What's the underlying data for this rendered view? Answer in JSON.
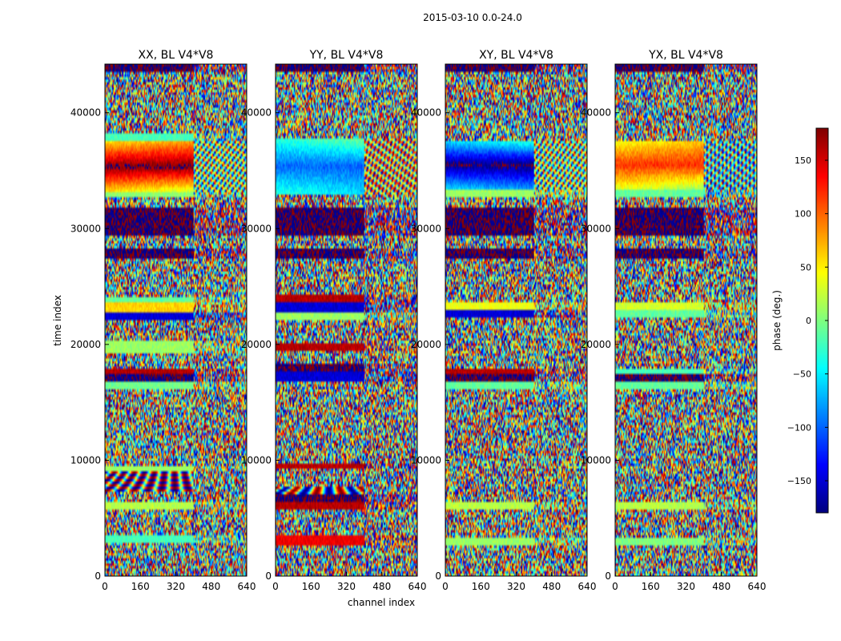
{
  "chart_data": {
    "type": "heatmap",
    "suptitle": "2015-03-10 0.0-24.0",
    "panels": [
      {
        "title": "XX, BL V4*V8",
        "bands": [
          [
            0,
            700,
            "noise"
          ],
          [
            700,
            2800,
            "noise"
          ],
          [
            2800,
            3500,
            "v:-20"
          ],
          [
            3500,
            5800,
            "noise"
          ],
          [
            5800,
            6500,
            "v:20"
          ],
          [
            6500,
            7300,
            "noise"
          ],
          [
            7300,
            9000,
            "fringe"
          ],
          [
            9000,
            9600,
            "v:10"
          ],
          [
            9600,
            13300,
            "noise"
          ],
          [
            13300,
            15300,
            "noise"
          ],
          [
            15300,
            16200,
            "noise"
          ],
          [
            16200,
            16800,
            "v:-5"
          ],
          [
            16800,
            17400,
            "v:-175"
          ],
          [
            17400,
            17800,
            "v:160"
          ],
          [
            17800,
            19200,
            "noise"
          ],
          [
            19200,
            20400,
            "v:10"
          ],
          [
            20400,
            22000,
            "noise"
          ],
          [
            22000,
            22800,
            "v:-150"
          ],
          [
            22800,
            23600,
            "v:60"
          ],
          [
            23600,
            24100,
            "v:-10"
          ],
          [
            24100,
            27300,
            "noise"
          ],
          [
            27300,
            28300,
            "v:-178"
          ],
          [
            28300,
            29500,
            "noise"
          ],
          [
            29500,
            31800,
            "v:-178"
          ],
          [
            31800,
            32600,
            "noise"
          ],
          [
            32600,
            33200,
            "v:5"
          ],
          [
            33200,
            37500,
            "wedge:180"
          ],
          [
            37500,
            38300,
            "v:-20"
          ],
          [
            38300,
            43600,
            "noise"
          ],
          [
            43600,
            44200,
            "v:-178"
          ]
        ]
      },
      {
        "title": "YY, BL V4*V8",
        "bands": [
          [
            0,
            700,
            "noise"
          ],
          [
            700,
            2600,
            "noise"
          ],
          [
            2600,
            3600,
            "v:140"
          ],
          [
            3600,
            5800,
            "noise"
          ],
          [
            5800,
            6500,
            "v:160"
          ],
          [
            6500,
            7000,
            "v:-178"
          ],
          [
            7000,
            7800,
            "fringe"
          ],
          [
            7800,
            9200,
            "noise"
          ],
          [
            9200,
            9700,
            "v:160"
          ],
          [
            9700,
            15300,
            "noise"
          ],
          [
            15300,
            16800,
            "noise"
          ],
          [
            16800,
            17600,
            "v:-150"
          ],
          [
            17600,
            18300,
            "v:-178"
          ],
          [
            18300,
            19400,
            "noise"
          ],
          [
            19400,
            20200,
            "v:160"
          ],
          [
            20200,
            22000,
            "noise"
          ],
          [
            22000,
            22800,
            "v:10"
          ],
          [
            22800,
            23600,
            "v:-150"
          ],
          [
            23600,
            24200,
            "v:160"
          ],
          [
            24200,
            27300,
            "noise"
          ],
          [
            27300,
            28300,
            "v:-178"
          ],
          [
            28300,
            29500,
            "noise"
          ],
          [
            29500,
            31800,
            "v:-178"
          ],
          [
            31800,
            33000,
            "noise"
          ],
          [
            33000,
            37800,
            "wedge:-100"
          ],
          [
            37800,
            43600,
            "noise"
          ],
          [
            43600,
            44200,
            "v:-178"
          ]
        ]
      },
      {
        "title": "XY, BL V4*V8",
        "bands": [
          [
            0,
            2700,
            "noise"
          ],
          [
            2700,
            3400,
            "v:10"
          ],
          [
            3400,
            5800,
            "noise"
          ],
          [
            5800,
            6500,
            "v:20"
          ],
          [
            6500,
            15300,
            "noise"
          ],
          [
            15300,
            16200,
            "noise"
          ],
          [
            16200,
            16900,
            "v:-10"
          ],
          [
            16900,
            17500,
            "v:-178"
          ],
          [
            17500,
            18000,
            "v:160"
          ],
          [
            18000,
            22300,
            "noise"
          ],
          [
            22300,
            22900,
            "v:-150"
          ],
          [
            22900,
            23600,
            "v:40"
          ],
          [
            23600,
            27300,
            "noise"
          ],
          [
            27300,
            28300,
            "v:-178"
          ],
          [
            28300,
            29500,
            "noise"
          ],
          [
            29500,
            31800,
            "v:-178"
          ],
          [
            31800,
            32600,
            "noise"
          ],
          [
            32600,
            33400,
            "v:10"
          ],
          [
            33400,
            37600,
            "wedge:-180"
          ],
          [
            37600,
            43600,
            "noise"
          ],
          [
            43600,
            44200,
            "v:-178"
          ]
        ]
      },
      {
        "title": "YX, BL V4*V8",
        "bands": [
          [
            0,
            2700,
            "noise"
          ],
          [
            2700,
            3400,
            "v:0"
          ],
          [
            3400,
            5800,
            "noise"
          ],
          [
            5800,
            6500,
            "v:20"
          ],
          [
            6500,
            15300,
            "noise"
          ],
          [
            15300,
            16200,
            "noise"
          ],
          [
            16200,
            16900,
            "v:-10"
          ],
          [
            16900,
            17500,
            "v:-178"
          ],
          [
            17500,
            18000,
            "v:-20"
          ],
          [
            18000,
            22300,
            "noise"
          ],
          [
            22300,
            22900,
            "v:-10"
          ],
          [
            22900,
            23600,
            "v:30"
          ],
          [
            23600,
            27300,
            "noise"
          ],
          [
            27300,
            28300,
            "v:-178"
          ],
          [
            28300,
            29500,
            "noise"
          ],
          [
            29500,
            31800,
            "v:-178"
          ],
          [
            31800,
            32600,
            "noise"
          ],
          [
            32600,
            33400,
            "v:-10"
          ],
          [
            33400,
            37600,
            "wedge:120"
          ],
          [
            37600,
            43600,
            "noise"
          ],
          [
            43600,
            44200,
            "v:-178"
          ]
        ]
      }
    ],
    "xlabel": "channel index",
    "ylabel": "time index",
    "xlim": [
      0,
      640
    ],
    "ylim": [
      0,
      44200
    ],
    "xticks": [
      0,
      160,
      320,
      480,
      640
    ],
    "yticks": [
      0,
      10000,
      20000,
      30000,
      40000
    ],
    "xtick_labels": [
      "0",
      "160",
      "320",
      "480",
      "640"
    ],
    "ytick_labels": [
      "0",
      "10000",
      "20000",
      "30000",
      "40000"
    ],
    "colorbar": {
      "label": "phase (deg.)",
      "range": [
        -180,
        180
      ],
      "ticks": [
        -150,
        -100,
        -50,
        0,
        50,
        100,
        150
      ],
      "tick_labels": [
        "−150",
        "−100",
        "−50",
        "0",
        "50",
        "100",
        "150"
      ],
      "colormap": "jet"
    }
  }
}
